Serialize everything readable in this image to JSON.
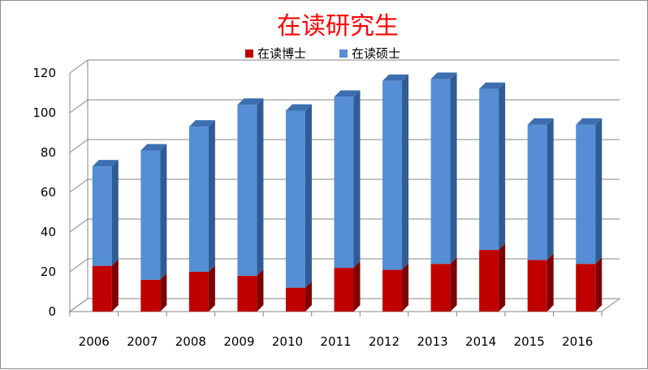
{
  "chart_data": {
    "type": "bar",
    "stacked": true,
    "three_d": true,
    "title": "在读研究生",
    "xlabel": "",
    "ylabel": "",
    "categories": [
      "2006",
      "2007",
      "2008",
      "2009",
      "2010",
      "2011",
      "2012",
      "2013",
      "2014",
      "2015",
      "2016"
    ],
    "series": [
      {
        "name": "在读博士",
        "color": "#c00000",
        "side_color": "#7f0000",
        "top_color": "#d43030",
        "values": [
          23,
          16,
          20,
          18,
          12,
          22,
          21,
          24,
          31,
          26,
          24
        ]
      },
      {
        "name": "在读硕士",
        "color": "#558ed5",
        "side_color": "#2f5c96",
        "top_color": "#3d6fb0",
        "values": [
          50,
          65,
          73,
          86,
          89,
          86,
          95,
          93,
          81,
          68,
          70
        ]
      }
    ],
    "ylim": [
      0,
      120
    ],
    "yticks": [
      0,
      20,
      40,
      60,
      80,
      100,
      120
    ],
    "grid": true,
    "legend_position": "top"
  }
}
